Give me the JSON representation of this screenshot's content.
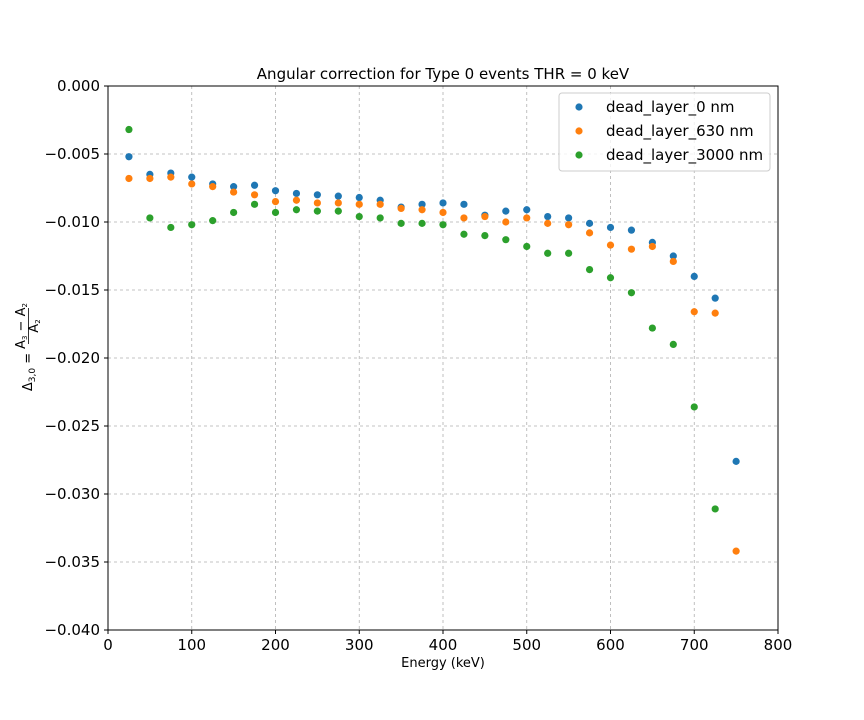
{
  "chart_data": {
    "type": "scatter",
    "title": "Angular correction for Type 0 events THR = 0 keV",
    "xlabel": "Energy (keV)",
    "ylabel_parts": {
      "lhs": "Δ",
      "lhs_sub": "3,0",
      "eq": " = ",
      "num": "A",
      "num_sub3": "3",
      "minus": " − ",
      "num2": "A",
      "num_sub2": "2",
      "den": "A",
      "den_sub": "2"
    },
    "xlim": [
      0,
      800
    ],
    "ylim": [
      -0.04,
      0.0
    ],
    "xticks": [
      0,
      100,
      200,
      300,
      400,
      500,
      600,
      700,
      800
    ],
    "xtick_labels": [
      "0",
      "100",
      "200",
      "300",
      "400",
      "500",
      "600",
      "700",
      "800"
    ],
    "yticks": [
      0.0,
      -0.005,
      -0.01,
      -0.015,
      -0.02,
      -0.025,
      -0.03,
      -0.035,
      -0.04
    ],
    "ytick_labels": [
      "0.000",
      "−0.005",
      "−0.010",
      "−0.015",
      "−0.020",
      "−0.025",
      "−0.030",
      "−0.035",
      "−0.040"
    ],
    "grid": true,
    "legend_position": "upper-right",
    "series": [
      {
        "name": "dead_layer_0 nm",
        "color": "#1f77b4",
        "x": [
          25,
          50,
          75,
          100,
          125,
          150,
          175,
          200,
          225,
          250,
          275,
          300,
          325,
          350,
          375,
          400,
          425,
          450,
          475,
          500,
          525,
          550,
          575,
          600,
          625,
          650,
          675,
          700,
          725,
          750
        ],
        "y": [
          -0.0052,
          -0.0065,
          -0.0064,
          -0.0067,
          -0.0072,
          -0.0074,
          -0.0073,
          -0.0077,
          -0.0079,
          -0.008,
          -0.0081,
          -0.0082,
          -0.0084,
          -0.0089,
          -0.0087,
          -0.0086,
          -0.0087,
          -0.0095,
          -0.0092,
          -0.0091,
          -0.0096,
          -0.0097,
          -0.0101,
          -0.0104,
          -0.0106,
          -0.0115,
          -0.0125,
          -0.014,
          -0.0156,
          -0.0276
        ]
      },
      {
        "name": "dead_layer_630 nm",
        "color": "#ff7f0e",
        "x": [
          25,
          50,
          75,
          100,
          125,
          150,
          175,
          200,
          225,
          250,
          275,
          300,
          325,
          350,
          375,
          400,
          425,
          450,
          475,
          500,
          525,
          550,
          575,
          600,
          625,
          650,
          675,
          700,
          725,
          750
        ],
        "y": [
          -0.0068,
          -0.0068,
          -0.0067,
          -0.0072,
          -0.0074,
          -0.0078,
          -0.008,
          -0.0085,
          -0.0084,
          -0.0086,
          -0.0086,
          -0.0087,
          -0.0087,
          -0.009,
          -0.0091,
          -0.0093,
          -0.0097,
          -0.0096,
          -0.01,
          -0.0097,
          -0.0101,
          -0.0102,
          -0.0108,
          -0.0117,
          -0.012,
          -0.0118,
          -0.0129,
          -0.0166,
          -0.0167,
          -0.0342
        ]
      },
      {
        "name": "dead_layer_3000 nm",
        "color": "#2ca02c",
        "x": [
          25,
          50,
          75,
          100,
          125,
          150,
          175,
          200,
          225,
          250,
          275,
          300,
          325,
          350,
          375,
          400,
          425,
          450,
          475,
          500,
          525,
          550,
          575,
          600,
          625,
          650,
          675,
          700,
          725
        ],
        "y": [
          -0.0032,
          -0.0097,
          -0.0104,
          -0.0102,
          -0.0099,
          -0.0093,
          -0.0087,
          -0.0093,
          -0.0091,
          -0.0092,
          -0.0092,
          -0.0096,
          -0.0097,
          -0.0101,
          -0.0101,
          -0.0102,
          -0.0109,
          -0.011,
          -0.0113,
          -0.0118,
          -0.0123,
          -0.0123,
          -0.0135,
          -0.0141,
          -0.0152,
          -0.0178,
          -0.019,
          -0.0236,
          -0.0311
        ]
      }
    ]
  }
}
